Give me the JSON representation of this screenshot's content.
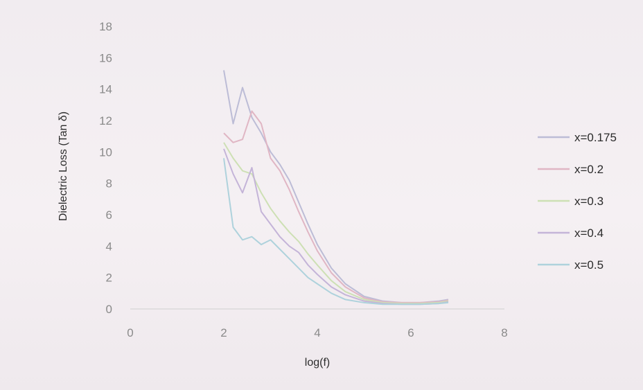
{
  "chart_data": {
    "type": "line",
    "title": "",
    "xlabel": "log(f)",
    "ylabel": "Dielectric Loss (Tan δ)",
    "xlim": [
      0,
      8
    ],
    "ylim": [
      0,
      18
    ],
    "x_ticks": [
      0,
      2,
      4,
      6,
      8
    ],
    "y_ticks": [
      0,
      2,
      4,
      6,
      8,
      10,
      12,
      14,
      16,
      18
    ],
    "grid": false,
    "legend_position": "right",
    "series": [
      {
        "name": "x=0.175",
        "color": "#bcbcd6",
        "x": [
          2.0,
          2.2,
          2.4,
          2.6,
          2.8,
          3.0,
          3.2,
          3.4,
          3.6,
          3.8,
          4.0,
          4.3,
          4.6,
          5.0,
          5.4,
          5.8,
          6.2,
          6.6,
          6.8
        ],
        "y": [
          15.2,
          11.8,
          14.1,
          12.2,
          11.2,
          10.0,
          9.2,
          8.2,
          6.8,
          5.4,
          4.1,
          2.6,
          1.6,
          0.8,
          0.5,
          0.4,
          0.4,
          0.5,
          0.6
        ]
      },
      {
        "name": "x=0.2",
        "color": "#e0b6c4",
        "x": [
          2.0,
          2.2,
          2.4,
          2.6,
          2.8,
          3.0,
          3.2,
          3.4,
          3.6,
          3.8,
          4.0,
          4.3,
          4.6,
          5.0,
          5.4,
          5.8,
          6.2,
          6.6,
          6.8
        ],
        "y": [
          11.2,
          10.6,
          10.8,
          12.6,
          11.8,
          9.6,
          8.8,
          7.6,
          6.2,
          4.9,
          3.7,
          2.3,
          1.4,
          0.7,
          0.45,
          0.4,
          0.4,
          0.45,
          0.55
        ]
      },
      {
        "name": "x=0.3",
        "color": "#cde0b4",
        "x": [
          2.0,
          2.2,
          2.4,
          2.6,
          2.8,
          3.0,
          3.2,
          3.4,
          3.6,
          3.8,
          4.0,
          4.3,
          4.6,
          5.0,
          5.4,
          5.8,
          6.2,
          6.6,
          6.8
        ],
        "y": [
          10.6,
          9.6,
          8.8,
          8.6,
          7.4,
          6.4,
          5.6,
          4.9,
          4.3,
          3.5,
          2.8,
          1.8,
          1.1,
          0.6,
          0.4,
          0.35,
          0.35,
          0.4,
          0.5
        ]
      },
      {
        "name": "x=0.4",
        "color": "#c4b4d8",
        "x": [
          2.0,
          2.2,
          2.4,
          2.6,
          2.8,
          3.0,
          3.2,
          3.4,
          3.6,
          3.8,
          4.0,
          4.3,
          4.6,
          5.0,
          5.4,
          5.8,
          6.2,
          6.6,
          6.8
        ],
        "y": [
          10.2,
          8.6,
          7.4,
          9.0,
          6.2,
          5.4,
          4.6,
          4.0,
          3.6,
          2.8,
          2.2,
          1.4,
          0.9,
          0.5,
          0.35,
          0.3,
          0.3,
          0.35,
          0.45
        ]
      },
      {
        "name": "x=0.5",
        "color": "#aed2dc",
        "x": [
          2.0,
          2.2,
          2.4,
          2.6,
          2.8,
          3.0,
          3.2,
          3.4,
          3.6,
          3.8,
          4.0,
          4.3,
          4.6,
          5.0,
          5.4,
          5.8,
          6.2,
          6.6,
          6.8
        ],
        "y": [
          9.6,
          5.2,
          4.4,
          4.6,
          4.1,
          4.4,
          3.8,
          3.2,
          2.6,
          2.0,
          1.6,
          1.0,
          0.6,
          0.4,
          0.3,
          0.3,
          0.3,
          0.35,
          0.4
        ]
      }
    ]
  }
}
